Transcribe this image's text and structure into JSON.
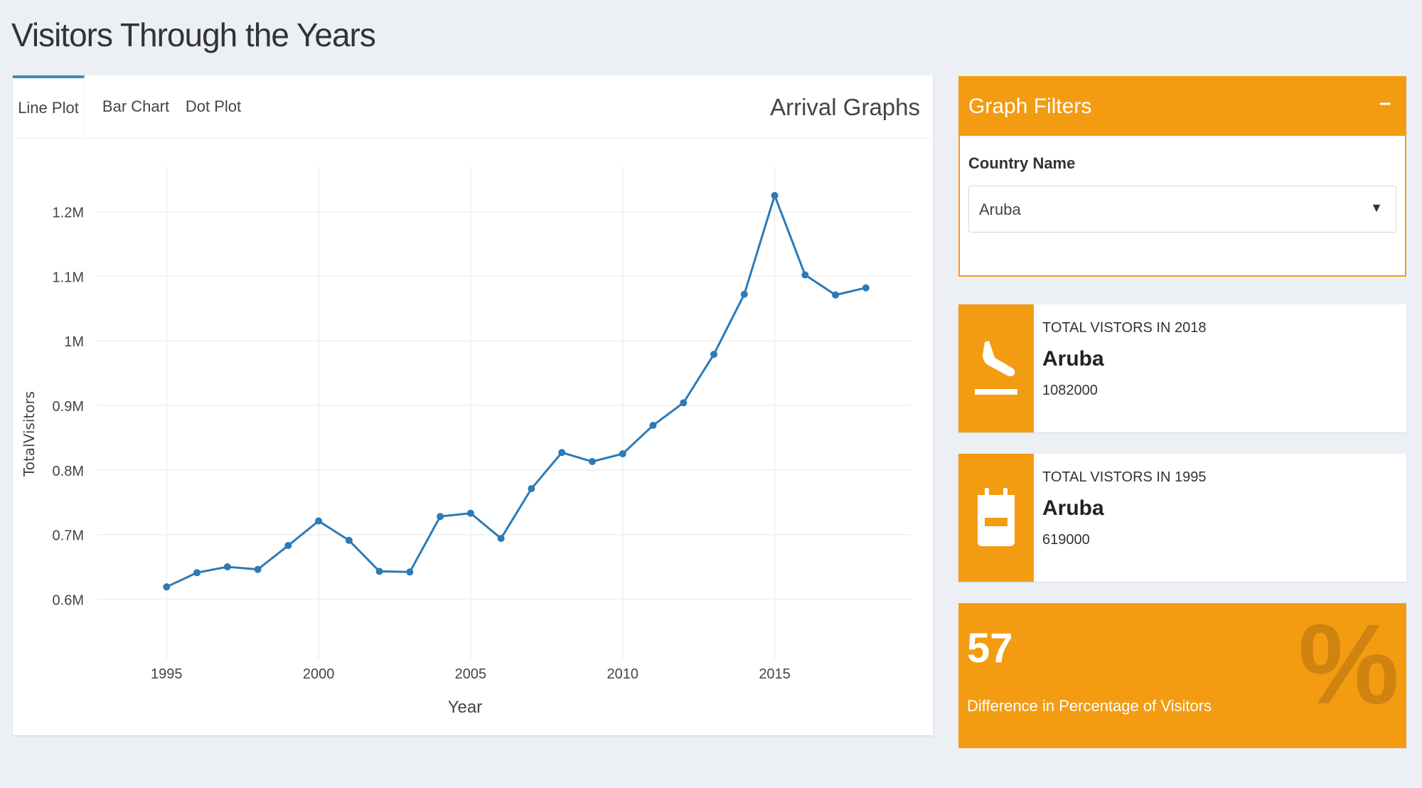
{
  "page": {
    "title": "Visitors Through the Years"
  },
  "graph_box": {
    "title": "Arrival Graphs",
    "tabs": [
      {
        "label": "Line Plot",
        "active": true
      },
      {
        "label": "Bar Chart",
        "active": false
      },
      {
        "label": "Dot Plot",
        "active": false
      }
    ]
  },
  "filters": {
    "title": "Graph Filters",
    "collapse_label": "–",
    "country_label": "Country Name",
    "country_value": "Aruba",
    "caret": "▼"
  },
  "info_2018": {
    "label": "TOTAL VISTORS IN 2018",
    "name": "Aruba",
    "value": "1082000",
    "icon": "plane-landing-icon"
  },
  "info_1995": {
    "label": "TOTAL VISTORS IN 1995",
    "name": "Aruba",
    "value": "619000",
    "icon": "calendar-icon"
  },
  "percent_box": {
    "value": "57",
    "label": "Difference in Percentage of Visitors",
    "icon_glyph": "%"
  },
  "colors": {
    "accent": "#f39c12",
    "line": "#2b7bb9",
    "tab_active": "#3c8dbc",
    "background": "#ecf0f5"
  },
  "chart_data": {
    "type": "line",
    "xlabel": "Year",
    "ylabel": "TotalVisitors",
    "x": [
      1995,
      1996,
      1997,
      1998,
      1999,
      2000,
      2001,
      2002,
      2003,
      2004,
      2005,
      2006,
      2007,
      2008,
      2009,
      2010,
      2011,
      2012,
      2013,
      2014,
      2015,
      2016,
      2017,
      2018
    ],
    "values": [
      619000,
      641000,
      650000,
      646000,
      683000,
      721000,
      691000,
      643000,
      642000,
      728000,
      733000,
      694000,
      771000,
      827000,
      813000,
      825000,
      869000,
      904000,
      979000,
      1072000,
      1225000,
      1102000,
      1071000,
      1082000
    ],
    "xticks": [
      "1995",
      "2000",
      "2005",
      "2010",
      "2015"
    ],
    "xtick_values": [
      1995,
      2000,
      2005,
      2010,
      2015
    ],
    "yticks": [
      "0.6M",
      "0.7M",
      "0.8M",
      "0.9M",
      "1M",
      "1.1M",
      "1.2M"
    ],
    "ytick_values": [
      600000,
      700000,
      800000,
      900000,
      1000000,
      1100000,
      1200000
    ],
    "xlim": [
      1992,
      2019.5
    ],
    "ylim": [
      530000,
      1270000
    ],
    "grid": true
  }
}
